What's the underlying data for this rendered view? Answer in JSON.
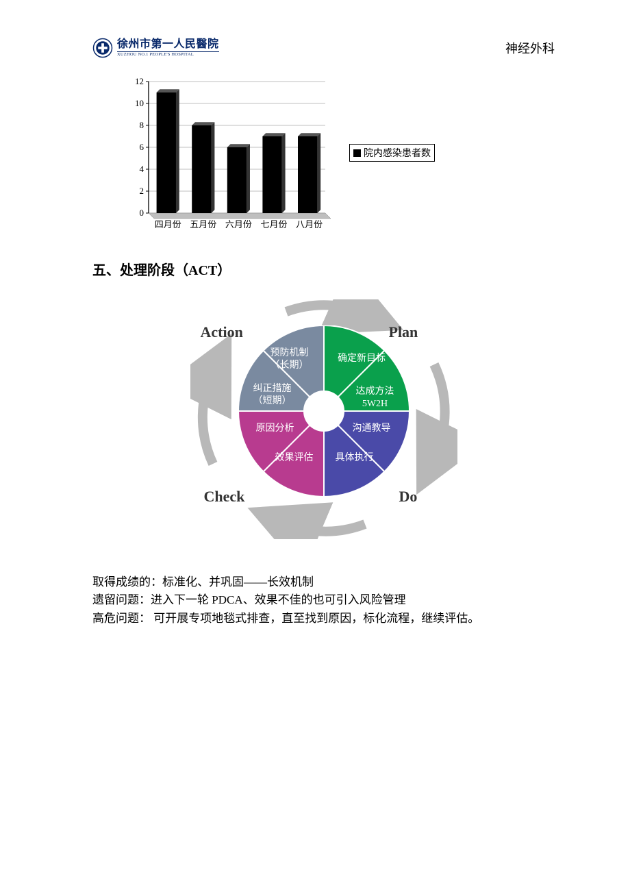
{
  "header": {
    "hospital_cn": "徐州市第一人民醫院",
    "hospital_en": "XUZHOU NO.1 PEOPLE'S HOSPITAL",
    "department": "神经外科"
  },
  "bar_chart": {
    "type": "bar",
    "categories": [
      "四月份",
      "五月份",
      "六月份",
      "七月份",
      "八月份"
    ],
    "values": [
      11,
      8,
      6,
      7,
      7
    ],
    "bar_color": "#000000",
    "ylim": [
      0,
      12
    ],
    "ytick_step": 2,
    "yticks": [
      0,
      2,
      4,
      6,
      8,
      10,
      12
    ],
    "axis_color": "#000000",
    "grid_color": "#808080",
    "background_color": "#ffffff",
    "bar_width": 0.55,
    "label_fontsize": 13,
    "legend_label": "院内感染患者数"
  },
  "section_heading": "五、处理阶段（ACT）",
  "pdca": {
    "outer_labels": {
      "plan": "Plan",
      "do": "Do",
      "check": "Check",
      "action": "Action"
    },
    "segments": [
      {
        "key": "plan1",
        "label": "确定新目标",
        "color": "#0aa04c"
      },
      {
        "key": "plan2",
        "label": "达成方法\n5W2H",
        "color": "#0aa04c"
      },
      {
        "key": "do1",
        "label": "沟通教导",
        "color": "#4a4aa8"
      },
      {
        "key": "do2",
        "label": "具体执行",
        "color": "#4a4aa8"
      },
      {
        "key": "check1",
        "label": "效果评估",
        "color": "#b83b8f"
      },
      {
        "key": "check2",
        "label": "原因分析",
        "color": "#b83b8f"
      },
      {
        "key": "action1",
        "label": "纠正措施\n（短期）",
        "color": "#7a8aa0"
      },
      {
        "key": "action2",
        "label": "预防机制\n（长期）",
        "color": "#7a8aa0"
      }
    ],
    "arrow_color": "#b8b8b8",
    "divider_color": "#ffffff",
    "hub_color": "#ffffff",
    "label_color": "#333333",
    "label_font": "Times New Roman",
    "segment_text_color": "#ffffff",
    "segment_fontsize": 14
  },
  "paragraphs": {
    "p1": "取得成绩的：标准化、并巩固——长效机制",
    "p2": "遗留问题：进入下一轮 PDCA、效果不佳的也可引入风险管理",
    "p3": "高危问题：  可开展专项地毯式排查，直至找到原因，标化流程，继续评估。"
  }
}
